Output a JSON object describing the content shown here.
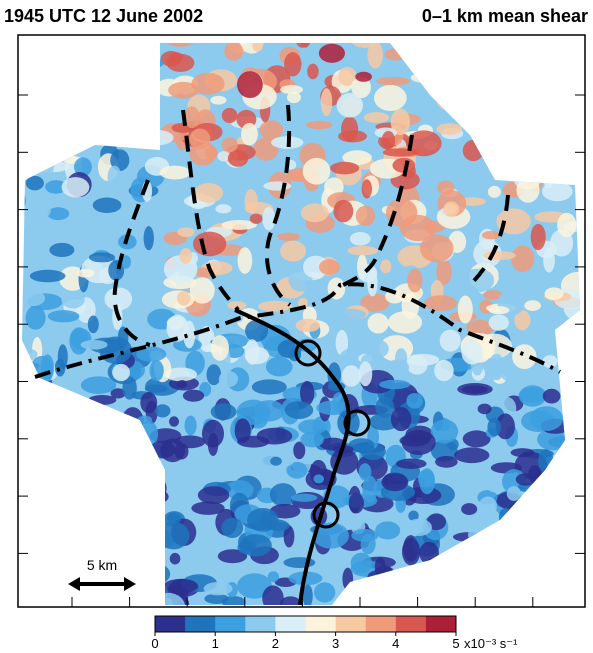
{
  "header": {
    "title_left": "1945 UTC 12 June 2002",
    "title_right": "0–1 km mean shear"
  },
  "scale_bar": {
    "label": "5 km"
  },
  "colorbar": {
    "ticks": [
      0,
      1,
      2,
      3,
      4,
      5
    ],
    "unit_label": "x10⁻³ s⁻¹",
    "colors": [
      "#2c2f8e",
      "#1e74bd",
      "#3c9fdf",
      "#8ccaee",
      "#d9eef6",
      "#fbf4dd",
      "#f7c9a3",
      "#ef9b7a",
      "#d9574e",
      "#ad1f38"
    ]
  }
}
